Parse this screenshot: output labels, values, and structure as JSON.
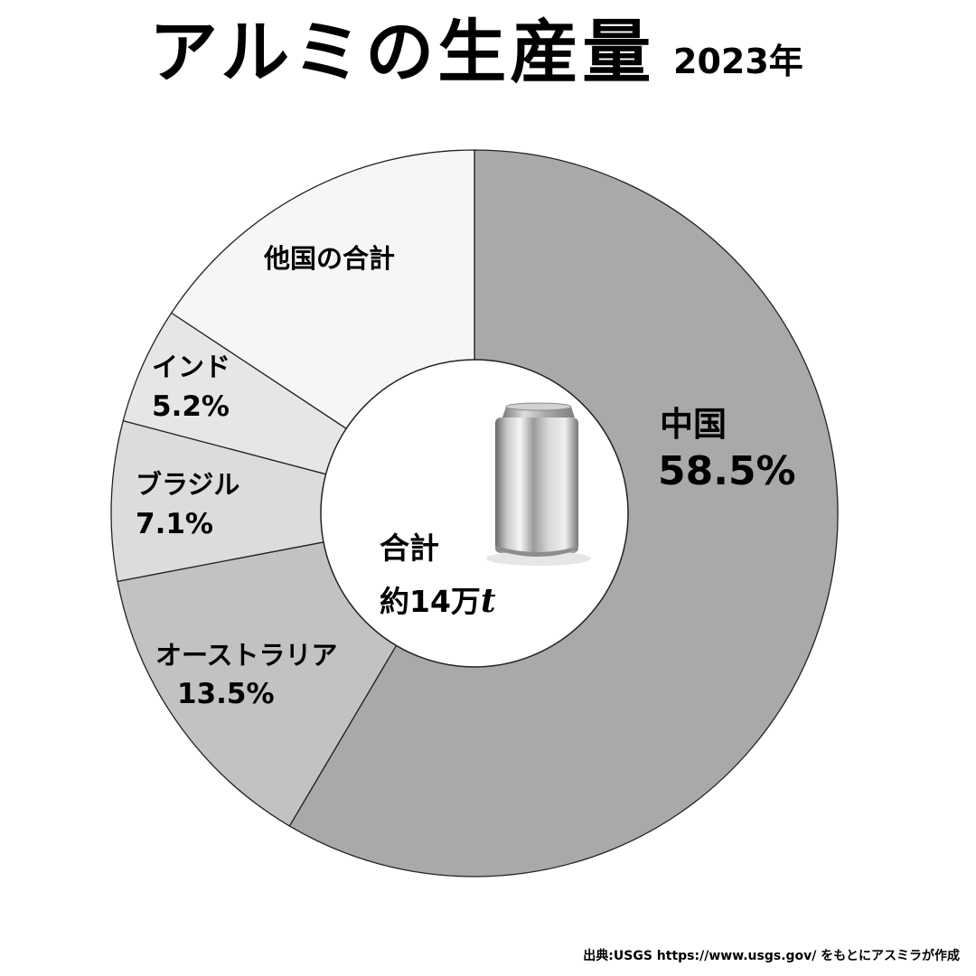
{
  "title": "アルミの生産量",
  "year": "2023年",
  "chart_data": {
    "type": "pie",
    "slices": [
      {
        "label": "中国",
        "percent_label": "58.5%",
        "value": 58.5,
        "color": "#a9a9a9"
      },
      {
        "label": "オーストラリア",
        "percent_label": "13.5%",
        "value": 13.5,
        "color": "#c2c2c2"
      },
      {
        "label": "ブラジル",
        "percent_label": "7.1%",
        "value": 7.1,
        "color": "#dcdcdc"
      },
      {
        "label": "インド",
        "percent_label": "5.2%",
        "value": 5.2,
        "color": "#e6e6e6"
      },
      {
        "label": "他国の合計",
        "percent_label": "",
        "value": 15.7,
        "color": "#f6f6f6"
      }
    ],
    "center": {
      "line1": "合計",
      "line2": "約14万",
      "unit": "t",
      "icon": "aluminum-can-icon"
    },
    "hole": "donut"
  },
  "source": "出典:USGS https://www.usgs.gov/ をもとにアスミラが作成"
}
